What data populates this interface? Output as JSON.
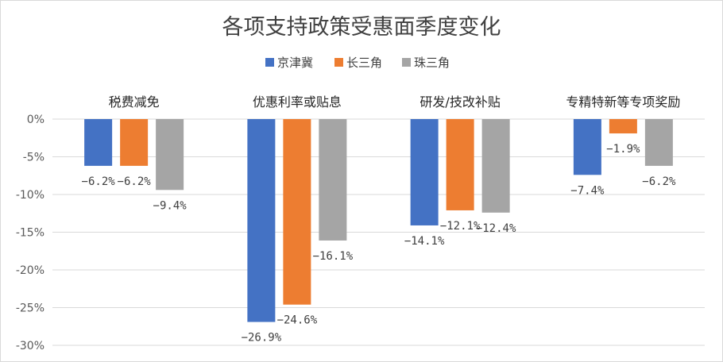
{
  "chart_data": {
    "type": "bar",
    "title": "各项支持政策受惠面季度变化",
    "categories": [
      "税费减免",
      "优惠利率或贴息",
      "研发/技改补贴",
      "专精特新等专项奖励"
    ],
    "series": [
      {
        "name": "京津冀",
        "values": [
          -6.2,
          -26.9,
          -14.1,
          -7.4
        ],
        "color": "#4472C4"
      },
      {
        "name": "长三角",
        "values": [
          -6.2,
          -24.6,
          -12.1,
          -1.9
        ],
        "color": "#ED7D31"
      },
      {
        "name": "珠三角",
        "values": [
          -9.4,
          -16.1,
          -12.4,
          -6.2
        ],
        "color": "#A5A5A5"
      }
    ],
    "data_labels": [
      [
        "−6.2%",
        "−26.9%",
        "−14.1%",
        "−7.4%"
      ],
      [
        "−6.2%",
        "−24.6%",
        "−12.1%",
        "−1.9%"
      ],
      [
        "−9.4%",
        "−16.1%",
        "−12.4%",
        "−6.2%"
      ]
    ],
    "ylim": [
      -30,
      0
    ],
    "yticks": [
      0,
      -5,
      -10,
      -15,
      -20,
      -25,
      -30
    ],
    "ytick_labels": [
      "0%",
      "-5%",
      "-10%",
      "-15%",
      "-20%",
      "-25%",
      "-30%"
    ],
    "xlabel": "",
    "ylabel": "",
    "grid": true,
    "legend_position": "top",
    "category_labels_position": "top"
  }
}
